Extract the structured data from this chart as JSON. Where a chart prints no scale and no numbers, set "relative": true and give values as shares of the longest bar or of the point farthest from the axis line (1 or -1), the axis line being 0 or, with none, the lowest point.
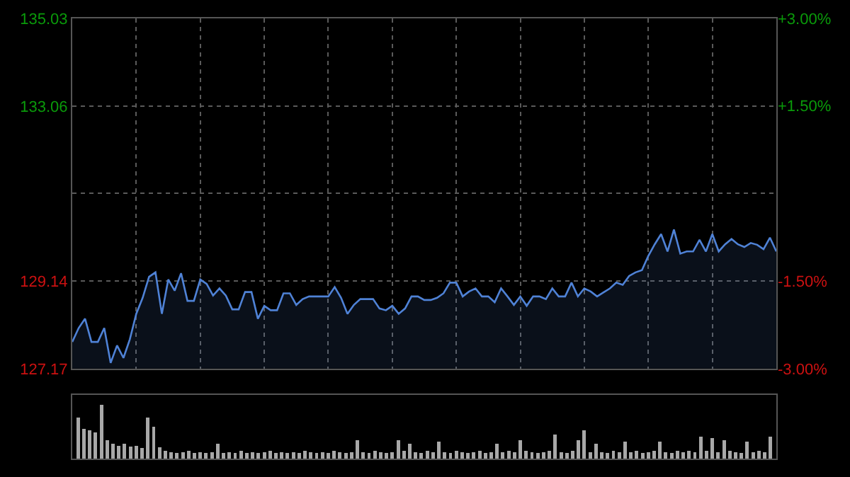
{
  "chart_data": [
    {
      "type": "area",
      "color": "#4f82d6",
      "categories": [
        null,
        null,
        null,
        null,
        null,
        null,
        null,
        null,
        null,
        null,
        null,
        null,
        null,
        null,
        null,
        null,
        null,
        null,
        null,
        null,
        null,
        null,
        null,
        null,
        null,
        null,
        null,
        null,
        null,
        null,
        null,
        null,
        null,
        null,
        null,
        null,
        null,
        null,
        null,
        null,
        null,
        null,
        null,
        null,
        null,
        null,
        null,
        null,
        null,
        null,
        null,
        null,
        null,
        null,
        null,
        null,
        null,
        null,
        null,
        null,
        null,
        null,
        null,
        null,
        null,
        null,
        null,
        null,
        null,
        null,
        null,
        null,
        null,
        null,
        null,
        null,
        null,
        null,
        null,
        null,
        null,
        null,
        null,
        null,
        null,
        null,
        null,
        null,
        null,
        null,
        null,
        null,
        null,
        null,
        null,
        null,
        null,
        null,
        null,
        null,
        null,
        null,
        null,
        null,
        null,
        null,
        null,
        null,
        null,
        null,
        null
      ],
      "values": [
        127.77,
        128.08,
        128.29,
        127.77,
        127.77,
        128.08,
        127.3,
        127.69,
        127.41,
        127.83,
        128.4,
        128.76,
        129.23,
        129.33,
        128.4,
        129.17,
        128.92,
        129.31,
        128.69,
        128.69,
        129.17,
        129.07,
        128.81,
        128.97,
        128.81,
        128.5,
        128.5,
        128.89,
        128.89,
        128.29,
        128.58,
        128.48,
        128.48,
        128.86,
        128.86,
        128.6,
        128.73,
        128.79,
        128.79,
        128.79,
        128.79,
        129.0,
        128.76,
        128.4,
        128.6,
        128.73,
        128.73,
        128.73,
        128.52,
        128.48,
        128.58,
        128.4,
        128.52,
        128.79,
        128.79,
        128.71,
        128.71,
        128.76,
        128.86,
        129.1,
        129.1,
        128.79,
        128.9,
        128.97,
        128.79,
        128.79,
        128.66,
        128.97,
        128.79,
        128.6,
        128.79,
        128.58,
        128.79,
        128.79,
        128.73,
        128.97,
        128.79,
        128.79,
        129.1,
        128.79,
        128.97,
        128.9,
        128.79,
        128.88,
        128.97,
        129.1,
        129.05,
        129.25,
        129.33,
        129.38,
        129.7,
        129.96,
        130.19,
        129.8,
        130.29,
        129.75,
        129.8,
        129.8,
        130.06,
        129.8,
        130.19,
        129.8,
        129.96,
        130.08,
        129.96,
        129.9,
        129.99,
        129.95,
        129.85,
        130.11,
        129.8
      ],
      "ylim": [
        127.17,
        135.03
      ],
      "yticks": [
        127.17,
        129.14,
        {
          "value": 131.1,
          "label": null
        },
        133.06,
        135.03
      ],
      "y2lim": [
        -3,
        3
      ],
      "y2ticks": [
        {
          "value": -3,
          "label": "-3.00%"
        },
        {
          "value": -1.5,
          "label": "-1.50%"
        },
        {
          "value": 0,
          "label": null
        },
        {
          "value": 1.5,
          "label": "+1.50%"
        },
        {
          "value": 3,
          "label": "+3.00%"
        }
      ],
      "grid": true
    },
    {
      "type": "bar",
      "relative": true,
      "color": "#a8a8a8",
      "categories": [
        null,
        null,
        null,
        null,
        null,
        null,
        null,
        null,
        null,
        null,
        null,
        null,
        null,
        null,
        null,
        null,
        null,
        null,
        null,
        null,
        null,
        null,
        null,
        null,
        null,
        null,
        null,
        null,
        null,
        null,
        null,
        null,
        null,
        null,
        null,
        null,
        null,
        null,
        null,
        null,
        null,
        null,
        null,
        null,
        null,
        null,
        null,
        null,
        null,
        null,
        null,
        null,
        null,
        null,
        null,
        null,
        null,
        null,
        null,
        null,
        null,
        null,
        null,
        null,
        null,
        null,
        null,
        null,
        null,
        null,
        null,
        null,
        null,
        null,
        null,
        null,
        null,
        null,
        null,
        null,
        null,
        null,
        null,
        null,
        null,
        null,
        null,
        null,
        null,
        null,
        null,
        null,
        null,
        null,
        null,
        null,
        null,
        null,
        null,
        null,
        null,
        null,
        null,
        null,
        null,
        null,
        null,
        null,
        null,
        null,
        null,
        null,
        null,
        null,
        null,
        null,
        null,
        null,
        null,
        null
      ],
      "values": [
        0.76,
        0.55,
        0.52,
        0.48,
        1.0,
        0.34,
        0.28,
        0.24,
        0.28,
        0.22,
        0.24,
        0.2,
        0.76,
        0.59,
        0.21,
        0.14,
        0.12,
        0.1,
        0.12,
        0.14,
        0.1,
        0.12,
        0.1,
        0.12,
        0.28,
        0.1,
        0.12,
        0.1,
        0.14,
        0.1,
        0.12,
        0.1,
        0.12,
        0.14,
        0.1,
        0.12,
        0.1,
        0.12,
        0.1,
        0.14,
        0.12,
        0.1,
        0.12,
        0.1,
        0.14,
        0.12,
        0.1,
        0.12,
        0.34,
        0.12,
        0.1,
        0.14,
        0.12,
        0.1,
        0.12,
        0.34,
        0.14,
        0.28,
        0.12,
        0.1,
        0.14,
        0.12,
        0.31,
        0.12,
        0.1,
        0.14,
        0.12,
        0.1,
        0.12,
        0.14,
        0.1,
        0.12,
        0.28,
        0.12,
        0.14,
        0.12,
        0.34,
        0.14,
        0.12,
        0.1,
        0.12,
        0.14,
        0.45,
        0.12,
        0.1,
        0.14,
        0.34,
        0.52,
        0.12,
        0.28,
        0.12,
        0.1,
        0.14,
        0.12,
        0.31,
        0.12,
        0.14,
        0.1,
        0.12,
        0.14,
        0.31,
        0.12,
        0.1,
        0.14,
        0.12,
        0.14,
        0.12,
        0.41,
        0.14,
        0.38,
        0.12,
        0.34,
        0.14,
        0.12,
        0.1,
        0.31,
        0.12,
        0.14,
        0.12,
        0.41
      ],
      "grid": false
    }
  ]
}
